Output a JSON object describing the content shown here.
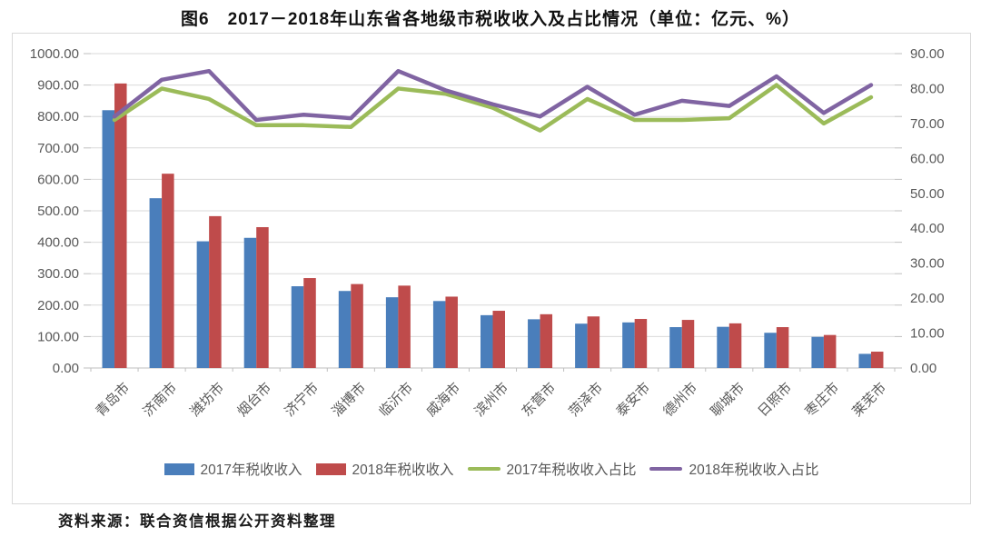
{
  "page": {
    "title": "图6　2017－2018年山东省各地级市税收收入及占比情况（单位：亿元、%）",
    "source": "资料来源：联合资信根据公开资料整理"
  },
  "colors": {
    "bar_2017": "#4a7ebb",
    "bar_2018": "#bf4b4b",
    "line_2017_pct": "#9bbb59",
    "line_2018_pct": "#8064a2",
    "gridline": "#d9d9d9",
    "axis_line": "#bfbfbf",
    "axis_text": "#595959"
  },
  "chart_data": {
    "type": "combo: grouped bar + line, dual axis",
    "title": "图6　2017－2018年山东省各地级市税收收入及占比情况（单位：亿元、%）",
    "categories": [
      "青岛市",
      "济南市",
      "潍坊市",
      "烟台市",
      "济宁市",
      "淄博市",
      "临沂市",
      "威海市",
      "滨州市",
      "东营市",
      "菏泽市",
      "泰安市",
      "德州市",
      "聊城市",
      "日照市",
      "枣庄市",
      "莱芜市"
    ],
    "series": [
      {
        "name": "2017年税收收入",
        "type": "bar",
        "axis": "left",
        "color": "#4a7ebb",
        "values": [
          820,
          540,
          403,
          414,
          260,
          245,
          225,
          213,
          168,
          155,
          141,
          145,
          130,
          131,
          112,
          99,
          45
        ]
      },
      {
        "name": "2018年税收收入",
        "type": "bar",
        "axis": "left",
        "color": "#bf4b4b",
        "values": [
          905,
          618,
          483,
          448,
          286,
          267,
          262,
          227,
          182,
          171,
          164,
          156,
          153,
          142,
          130,
          105,
          52
        ]
      },
      {
        "name": "2017年税收收入占比",
        "type": "line",
        "axis": "right",
        "color": "#9bbb59",
        "values": [
          71,
          80,
          77,
          69.5,
          69.5,
          69,
          80,
          78.5,
          74.5,
          68,
          77,
          71,
          71,
          71.5,
          81,
          70,
          77.5
        ]
      },
      {
        "name": "2018年税收收入占比",
        "type": "line",
        "axis": "right",
        "color": "#8064a2",
        "values": [
          72,
          82.5,
          85,
          71,
          72.5,
          71.5,
          85,
          79.5,
          75.5,
          72,
          80.5,
          72.5,
          76.5,
          75,
          83.5,
          73,
          81
        ]
      }
    ],
    "left_axis": {
      "min": 0,
      "max": 1000,
      "step": 100,
      "tick_labels": [
        "0.00",
        "100.00",
        "200.00",
        "300.00",
        "400.00",
        "500.00",
        "600.00",
        "700.00",
        "800.00",
        "900.00",
        "1000.00"
      ]
    },
    "right_axis": {
      "min": 0,
      "max": 90,
      "step": 10,
      "tick_labels": [
        "0.00",
        "10.00",
        "20.00",
        "30.00",
        "40.00",
        "50.00",
        "60.00",
        "70.00",
        "80.00",
        "90.00"
      ]
    },
    "legend_position": "bottom",
    "grid": true,
    "units": "亿元、%"
  }
}
